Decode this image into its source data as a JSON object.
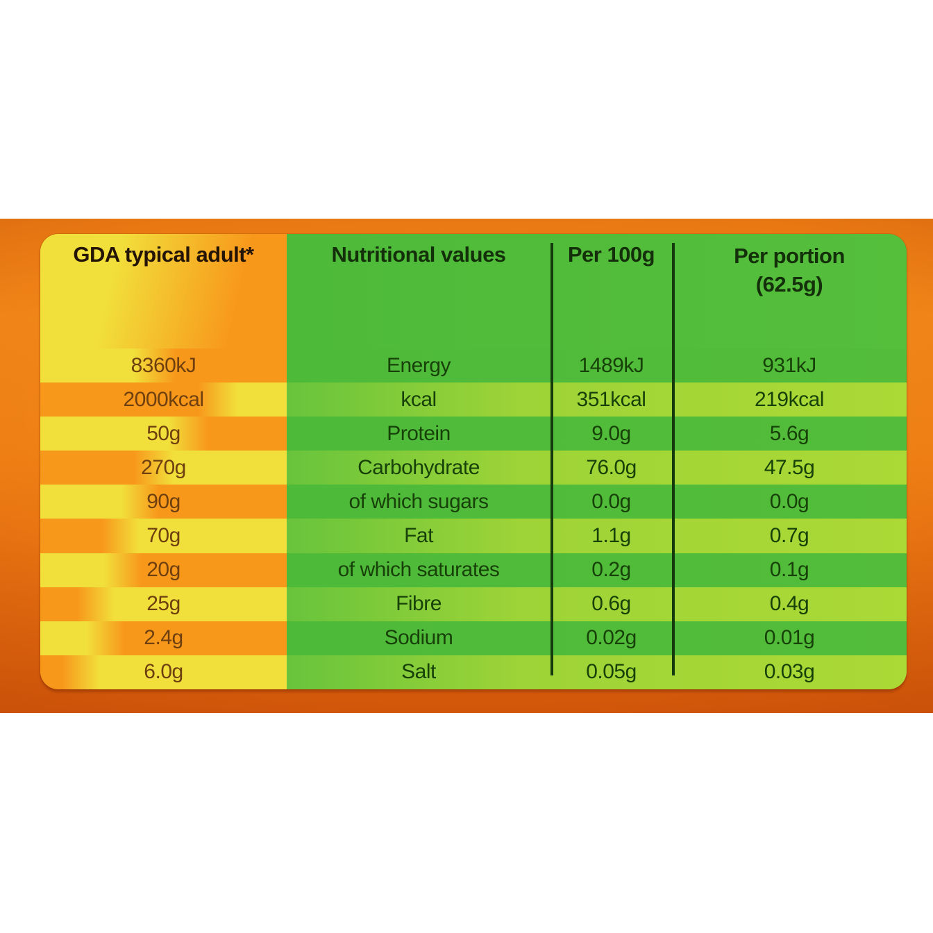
{
  "panel": {
    "gda_header": "GDA typical adult*",
    "col_headers": {
      "nutritional": "Nutritional values",
      "per100": "Per 100g",
      "portion_line1": "Per portion",
      "portion_line2": "(62.5g)"
    },
    "rows": [
      {
        "gda": "8360kJ",
        "label": "Energy",
        "per100": "1489kJ",
        "portion": "931kJ"
      },
      {
        "gda": "2000kcal",
        "label": "kcal",
        "per100": "351kcal",
        "portion": "219kcal"
      },
      {
        "gda": "50g",
        "label": "Protein",
        "per100": "9.0g",
        "portion": "5.6g"
      },
      {
        "gda": "270g",
        "label": "Carbohydrate",
        "per100": "76.0g",
        "portion": "47.5g"
      },
      {
        "gda": "90g",
        "label": "of which sugars",
        "per100": "0.0g",
        "portion": "0.0g"
      },
      {
        "gda": "70g",
        "label": "Fat",
        "per100": "1.1g",
        "portion": "0.7g"
      },
      {
        "gda": "20g",
        "label": "of which saturates",
        "per100": "0.2g",
        "portion": "0.1g"
      },
      {
        "gda": "25g",
        "label": "Fibre",
        "per100": "0.6g",
        "portion": "0.4g"
      },
      {
        "gda": "2.4g",
        "label": "Sodium",
        "per100": "0.02g",
        "portion": "0.01g"
      },
      {
        "gda": "6.0g",
        "label": "Salt",
        "per100": "0.05g",
        "portion": "0.03g"
      }
    ],
    "colors": {
      "background_orange": "#e87712",
      "stripe_yellow": "#f1df3b",
      "stripe_orange": "#f8981b",
      "green_medium": "#4eba39",
      "green_light": "#a5d737",
      "divider_dark_green": "#143a0d",
      "text_dark_green": "#174109",
      "text_brown": "#6e4010"
    }
  }
}
